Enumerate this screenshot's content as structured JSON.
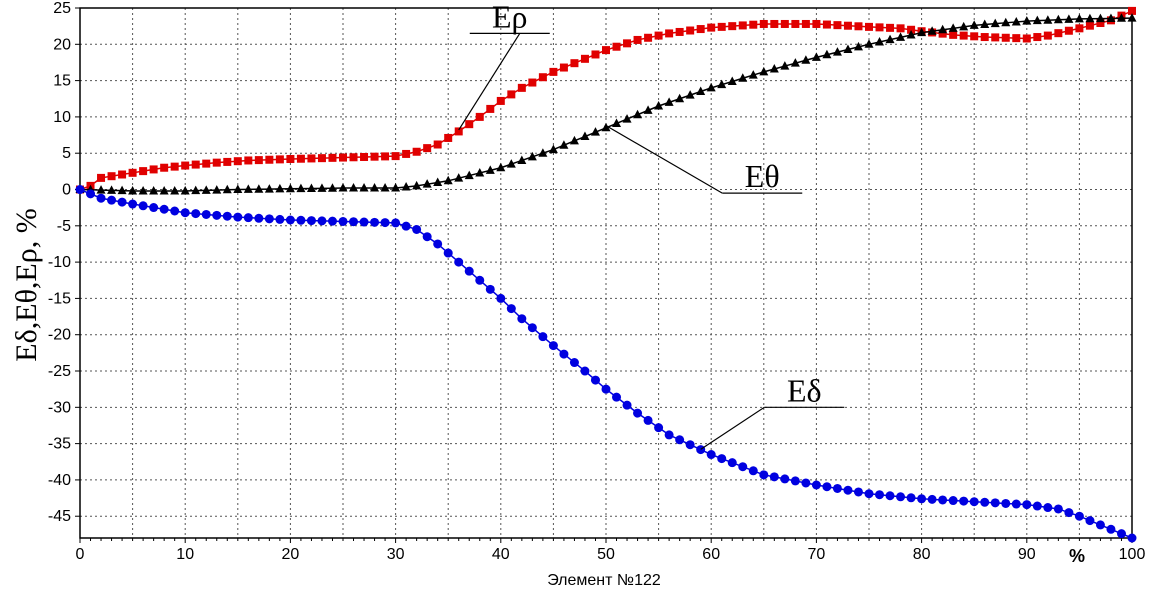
{
  "chart_data": {
    "type": "scatter",
    "title": "",
    "xlabel": "Элемент №122",
    "x_unit_label": "%",
    "ylabel": "Eδ,Eθ,Eρ, %",
    "xlim": [
      0,
      100
    ],
    "ylim": [
      -48,
      25
    ],
    "x_ticks": [
      0,
      10,
      20,
      30,
      40,
      50,
      60,
      70,
      80,
      90,
      100
    ],
    "y_ticks": [
      25,
      20,
      15,
      10,
      5,
      0,
      -5,
      -10,
      -15,
      -20,
      -25,
      -30,
      -35,
      -40,
      -45
    ],
    "grid": true,
    "series": [
      {
        "name": "Eρ",
        "marker": "square",
        "color": "#e00000",
        "label_at": [
          38,
          21.5
        ],
        "label_pointer_to": [
          36,
          8.2
        ],
        "curve": [
          [
            0,
            0
          ],
          [
            1,
            0.5
          ],
          [
            2,
            1.6
          ],
          [
            5,
            2.3
          ],
          [
            8,
            3.0
          ],
          [
            10,
            3.3
          ],
          [
            13,
            3.7
          ],
          [
            16,
            4.0
          ],
          [
            20,
            4.2
          ],
          [
            25,
            4.4
          ],
          [
            30,
            4.6
          ],
          [
            32,
            5.2
          ],
          [
            34,
            6.2
          ],
          [
            36,
            8.0
          ],
          [
            38,
            10.0
          ],
          [
            40,
            12.2
          ],
          [
            42,
            14.0
          ],
          [
            45,
            16.2
          ],
          [
            48,
            18.0
          ],
          [
            50,
            19.2
          ],
          [
            53,
            20.6
          ],
          [
            56,
            21.5
          ],
          [
            60,
            22.3
          ],
          [
            65,
            22.8
          ],
          [
            70,
            22.8
          ],
          [
            75,
            22.4
          ],
          [
            78,
            22.2
          ],
          [
            80,
            21.8
          ],
          [
            83,
            21.3
          ],
          [
            86,
            21.0
          ],
          [
            88,
            20.9
          ],
          [
            90,
            20.8
          ],
          [
            92,
            21.2
          ],
          [
            95,
            22.2
          ],
          [
            98,
            23.3
          ],
          [
            100,
            24.6
          ]
        ]
      },
      {
        "name": "Eθ",
        "marker": "triangle",
        "color": "#000000",
        "label_at": [
          62,
          -0.5
        ],
        "label_pointer_to": [
          50,
          8.8
        ],
        "curve": [
          [
            0,
            0
          ],
          [
            5,
            -0.2
          ],
          [
            10,
            -0.2
          ],
          [
            15,
            0
          ],
          [
            20,
            0.1
          ],
          [
            25,
            0.2
          ],
          [
            30,
            0.2
          ],
          [
            32,
            0.5
          ],
          [
            35,
            1.2
          ],
          [
            40,
            3.0
          ],
          [
            45,
            5.5
          ],
          [
            50,
            8.5
          ],
          [
            55,
            11.5
          ],
          [
            60,
            14.0
          ],
          [
            65,
            16.2
          ],
          [
            70,
            18.2
          ],
          [
            75,
            20.0
          ],
          [
            80,
            21.6
          ],
          [
            85,
            22.6
          ],
          [
            90,
            23.2
          ],
          [
            95,
            23.5
          ],
          [
            100,
            23.6
          ]
        ]
      },
      {
        "name": "Eδ",
        "marker": "circle",
        "color": "#0000e0",
        "label_at": [
          66,
          -30
        ],
        "label_pointer_to": [
          59,
          -35.8
        ],
        "curve": [
          [
            0,
            0
          ],
          [
            2,
            -1.2
          ],
          [
            5,
            -2.0
          ],
          [
            10,
            -3.2
          ],
          [
            15,
            -3.8
          ],
          [
            20,
            -4.2
          ],
          [
            25,
            -4.4
          ],
          [
            30,
            -4.6
          ],
          [
            32,
            -5.5
          ],
          [
            34,
            -7.5
          ],
          [
            36,
            -10.0
          ],
          [
            38,
            -12.5
          ],
          [
            40,
            -15.0
          ],
          [
            42,
            -17.8
          ],
          [
            45,
            -21.5
          ],
          [
            48,
            -25.0
          ],
          [
            50,
            -27.5
          ],
          [
            53,
            -30.8
          ],
          [
            56,
            -33.8
          ],
          [
            60,
            -36.5
          ],
          [
            65,
            -39.3
          ],
          [
            70,
            -40.7
          ],
          [
            75,
            -41.9
          ],
          [
            80,
            -42.6
          ],
          [
            85,
            -43.0
          ],
          [
            90,
            -43.4
          ],
          [
            93,
            -44.0
          ],
          [
            95,
            -45.0
          ],
          [
            98,
            -46.8
          ],
          [
            100,
            -48.0
          ]
        ]
      }
    ]
  }
}
